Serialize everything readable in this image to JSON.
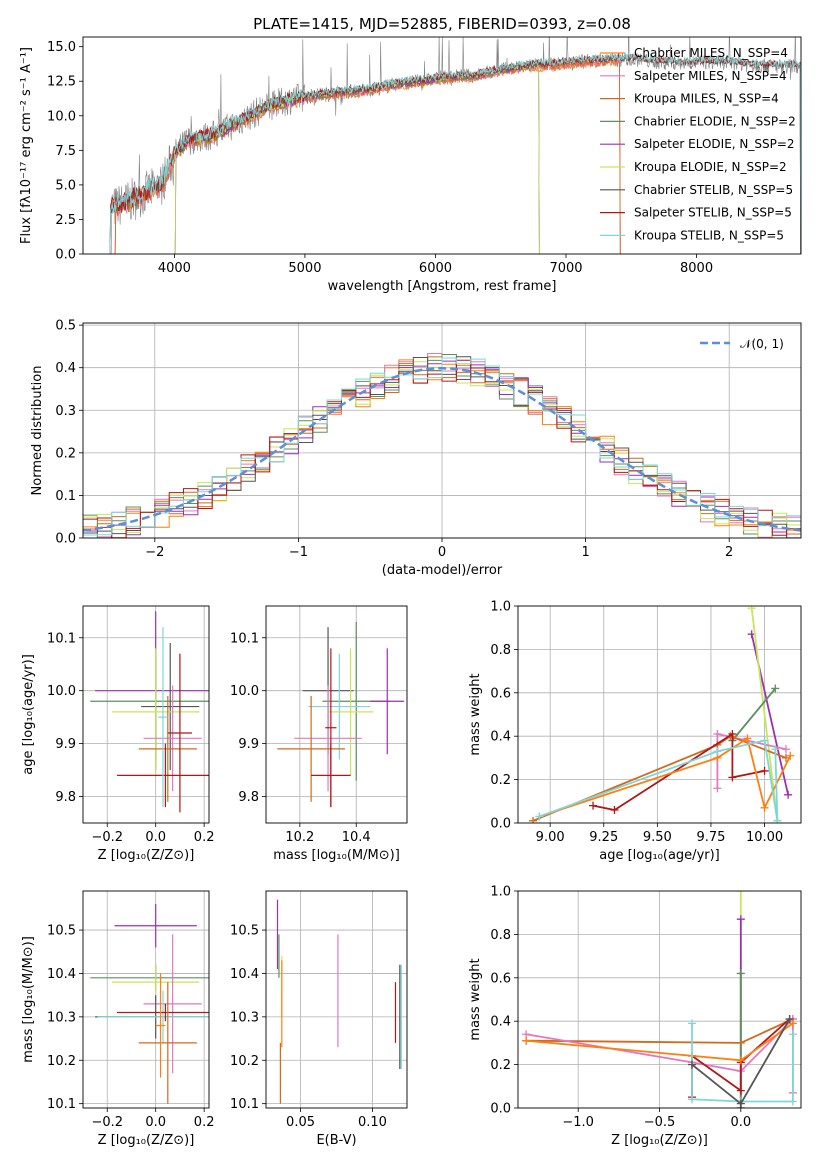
{
  "palette": [
    "#ff7f0e",
    "#e377c2",
    "#d2691e",
    "#5e8f5e",
    "#9b30b5",
    "#c8e65a",
    "#555555",
    "#b01818",
    "#7fd6d6"
  ],
  "chart_data": [
    {
      "id": "spectrum",
      "type": "line",
      "title": "PLATE=1415, MJD=52885, FIBERID=0393, z=0.08",
      "xlabel": "wavelength [Angstrom, rest frame]",
      "ylabel": "Flux [fλ10⁻¹⁷ erg cm⁻² s⁻¹ A⁻¹]",
      "xlim": [
        3300,
        8800
      ],
      "ylim": [
        0,
        15.7
      ],
      "xticks": [
        "4000",
        "5000",
        "6000",
        "7000",
        "8000"
      ],
      "yticks": [
        "0.0",
        "2.5",
        "5.0",
        "7.5",
        "10.0",
        "12.5",
        "15.0"
      ],
      "grid": false,
      "legend_position": "top-right",
      "continuum_anchor_x": [
        3500,
        3700,
        3900,
        4000,
        4100,
        4300,
        4500,
        4700,
        4900,
        5100,
        5300,
        5500,
        5700,
        5900,
        6100,
        6300,
        6500,
        6700,
        6900,
        7100,
        7300,
        7500,
        7700,
        7900,
        8100,
        8300,
        8500,
        8700
      ],
      "continuum_anchor_y": [
        3.2,
        4.0,
        5.0,
        7.2,
        8.2,
        8.6,
        9.6,
        10.6,
        11.2,
        11.5,
        11.7,
        11.9,
        12.3,
        12.5,
        12.8,
        12.9,
        13.3,
        13.6,
        13.7,
        13.9,
        14.0,
        14.1,
        13.9,
        13.8,
        13.9,
        13.8,
        13.6,
        13.6
      ],
      "series": [
        {
          "name": "Chabrier MILES, N_SSP=4",
          "color": "#ff7f0e",
          "x_range": [
            3540,
            7420
          ]
        },
        {
          "name": "Salpeter MILES, N_SSP=4",
          "color": "#e377c2",
          "x_range": [
            3540,
            7420
          ]
        },
        {
          "name": "Kroupa MILES, N_SSP=4",
          "color": "#d2691e",
          "x_range": [
            3540,
            7420
          ]
        },
        {
          "name": "Chabrier ELODIE, N_SSP=2",
          "color": "#5e8f5e",
          "x_range": [
            4000,
            6800
          ]
        },
        {
          "name": "Salpeter ELODIE, N_SSP=2",
          "color": "#9b30b5",
          "x_range": [
            4000,
            6800
          ]
        },
        {
          "name": "Kroupa ELODIE, N_SSP=2",
          "color": "#c8e65a",
          "x_range": [
            4000,
            6800
          ]
        },
        {
          "name": "Chabrier STELIB, N_SSP=5",
          "color": "#555555",
          "x_range": [
            3500,
            8800
          ]
        },
        {
          "name": "Salpeter STELIB, N_SSP=5",
          "color": "#b01818",
          "x_range": [
            3500,
            8800
          ]
        },
        {
          "name": "Kroupa STELIB, N_SSP=5",
          "color": "#7fd6d6",
          "x_range": [
            3500,
            8800
          ]
        }
      ]
    },
    {
      "id": "residuals",
      "type": "histogram",
      "xlabel": "(data-model)/error",
      "ylabel": "Normed distribution",
      "xlim": [
        -2.5,
        2.5
      ],
      "ylim": [
        0,
        0.505
      ],
      "xticks": [
        "−2",
        "−1",
        "0",
        "1",
        "2"
      ],
      "yticks": [
        "0.0",
        "0.1",
        "0.2",
        "0.3",
        "0.4",
        "0.5"
      ],
      "grid": true,
      "legend": "𝒩(0, 1)",
      "legend_position": "top-right",
      "bin_width": 0.1
    },
    {
      "id": "age-vs-Z",
      "type": "errorbar",
      "xlabel": "Z [log₁₀(Z/Z⊙)]",
      "ylabel": "age  [log₁₀(age/yr)]",
      "xlim": [
        -0.3,
        0.22
      ],
      "ylim": [
        9.75,
        10.16
      ],
      "xticks": [
        "−0.2",
        "0.0",
        "0.2"
      ],
      "yticks": [
        "9.8",
        "9.9",
        "10.0",
        "10.1"
      ],
      "grid": true,
      "points": [
        {
          "x": 0.0,
          "y": 10.0,
          "xerr": 0.25,
          "yerr": 0.15,
          "c": 4
        },
        {
          "x": 0.0,
          "y": 9.98,
          "xerr": 0.27,
          "yerr": 0.1,
          "c": 3
        },
        {
          "x": 0.06,
          "y": 9.97,
          "xerr": 0.12,
          "yerr": 0.12,
          "c": 6
        },
        {
          "x": 0.0,
          "y": 9.96,
          "xerr": 0.18,
          "yerr": 0.12,
          "c": 5
        },
        {
          "x": 0.07,
          "y": 9.91,
          "xerr": 0.12,
          "yerr": 0.1,
          "c": 1
        },
        {
          "x": 0.05,
          "y": 9.89,
          "xerr": 0.12,
          "yerr": 0.1,
          "c": 2
        },
        {
          "x": 0.04,
          "y": 9.84,
          "xerr": 0.2,
          "yerr": 0.06,
          "c": 7
        },
        {
          "x": 0.1,
          "y": 9.92,
          "xerr": 0.05,
          "yerr": 0.15,
          "c": 7
        },
        {
          "x": 0.03,
          "y": 9.95,
          "xerr": 0.02,
          "yerr": 0.17,
          "c": 8
        }
      ]
    },
    {
      "id": "age-vs-mass",
      "type": "errorbar",
      "xlabel": "mass [log₁₀(M/M⊙)]",
      "ylabel": "",
      "xlim": [
        10.08,
        10.58
      ],
      "ylim": [
        9.75,
        10.16
      ],
      "xticks": [
        "10.2",
        "10.4"
      ],
      "yticks": [
        "9.8",
        "9.9",
        "10.0",
        "10.1"
      ],
      "grid": true,
      "points": [
        {
          "x": 10.3,
          "y": 10.0,
          "xerr": 0.09,
          "yerr": 0.12,
          "c": 6
        },
        {
          "x": 10.4,
          "y": 9.98,
          "xerr": 0.12,
          "yerr": 0.15,
          "c": 3
        },
        {
          "x": 10.51,
          "y": 9.98,
          "xerr": 0.06,
          "yerr": 0.1,
          "c": 4
        },
        {
          "x": 10.34,
          "y": 9.97,
          "xerr": 0.11,
          "yerr": 0.1,
          "c": 8
        },
        {
          "x": 10.38,
          "y": 9.96,
          "xerr": 0.08,
          "yerr": 0.12,
          "c": 5
        },
        {
          "x": 10.3,
          "y": 9.91,
          "xerr": 0.12,
          "yerr": 0.1,
          "c": 1
        },
        {
          "x": 10.24,
          "y": 9.89,
          "xerr": 0.12,
          "yerr": 0.1,
          "c": 2
        },
        {
          "x": 10.31,
          "y": 9.84,
          "xerr": 0.07,
          "yerr": 0.06,
          "c": 7
        },
        {
          "x": 10.31,
          "y": 9.93,
          "xerr": 0.02,
          "yerr": 0.15,
          "c": 7
        }
      ]
    },
    {
      "id": "weight-vs-age",
      "type": "line",
      "xlabel": "age  [log₁₀(age/yr)]",
      "ylabel": "mass weight",
      "xlim": [
        8.85,
        10.17
      ],
      "ylim": [
        0,
        1.0
      ],
      "xticks": [
        "9.00",
        "9.25",
        "9.50",
        "9.75",
        "10.00"
      ],
      "yticks": [
        "0.0",
        "0.2",
        "0.4",
        "0.6",
        "0.8",
        "1.0"
      ],
      "grid": true,
      "series": [
        {
          "c": 4,
          "x": [
            9.94,
            10.11
          ],
          "y": [
            0.87,
            0.13
          ]
        },
        {
          "c": 5,
          "x": [
            9.94,
            10.06
          ],
          "y": [
            0.99,
            0.01
          ]
        },
        {
          "c": 3,
          "x": [
            9.85,
            10.05
          ],
          "y": [
            0.38,
            0.62
          ]
        },
        {
          "c": 1,
          "x": [
            9.78,
            9.78,
            10.1
          ],
          "y": [
            0.16,
            0.41,
            0.34
          ]
        },
        {
          "c": 2,
          "x": [
            8.92,
            9.78,
            9.84,
            10.1
          ],
          "y": [
            0.01,
            0.36,
            0.4,
            0.3
          ]
        },
        {
          "c": 7,
          "x": [
            9.2,
            9.3,
            9.85,
            9.85,
            10.0
          ],
          "y": [
            0.08,
            0.06,
            0.41,
            0.21,
            0.24
          ]
        },
        {
          "c": 0,
          "x": [
            8.95,
            9.78,
            9.92,
            10.0,
            10.12
          ],
          "y": [
            0.03,
            0.3,
            0.39,
            0.07,
            0.31
          ]
        },
        {
          "c": 8,
          "x": [
            8.95,
            9.78,
            10.0,
            10.06,
            10.05
          ],
          "y": [
            0.03,
            0.33,
            0.38,
            0.01,
            0.34
          ]
        }
      ]
    },
    {
      "id": "mass-vs-Z",
      "type": "errorbar",
      "xlabel": "Z [log₁₀(Z/Z⊙)]",
      "ylabel": "mass [log₁₀(M/M⊙)]",
      "xlim": [
        -0.3,
        0.22
      ],
      "ylim": [
        10.09,
        10.59
      ],
      "xticks": [
        "−0.2",
        "0.0",
        "0.2"
      ],
      "yticks": [
        "10.1",
        "10.2",
        "10.3",
        "10.4",
        "10.5"
      ],
      "grid": true,
      "points": [
        {
          "x": 0.0,
          "y": 10.51,
          "xerr": 0.17,
          "yerr": 0.05,
          "c": 4
        },
        {
          "x": 0.0,
          "y": 10.39,
          "xerr": 0.27,
          "yerr": 0.03,
          "c": 3
        },
        {
          "x": 0.0,
          "y": 10.38,
          "xerr": 0.18,
          "yerr": 0.04,
          "c": 5
        },
        {
          "x": 0.07,
          "y": 10.33,
          "xerr": 0.12,
          "yerr": 0.16,
          "c": 1
        },
        {
          "x": 0.0,
          "y": 10.3,
          "xerr": 0.25,
          "yerr": 0.05,
          "c": 6
        },
        {
          "x": 0.03,
          "y": 10.3,
          "xerr": 0.27,
          "yerr": 0.06,
          "c": 8
        },
        {
          "x": 0.04,
          "y": 10.31,
          "xerr": 0.2,
          "yerr": 0.02,
          "c": 7
        },
        {
          "x": 0.05,
          "y": 10.24,
          "xerr": 0.12,
          "yerr": 0.14,
          "c": 2
        },
        {
          "x": 0.02,
          "y": 10.28,
          "xerr": 0.02,
          "yerr": 0.12,
          "c": 0
        }
      ]
    },
    {
      "id": "mass-vs-EBV",
      "type": "errorbar",
      "xlabel": "E(B-V)",
      "ylabel": "",
      "xlim": [
        0.026,
        0.124
      ],
      "ylim": [
        10.09,
        10.59
      ],
      "xticks": [
        "0.05",
        "0.10"
      ],
      "yticks": [
        "10.1",
        "10.2",
        "10.3",
        "10.4",
        "10.5"
      ],
      "grid": true,
      "points": [
        {
          "x": 0.034,
          "y": 10.49,
          "xerr": 0,
          "yerr": 0.08,
          "c": 4
        },
        {
          "x": 0.035,
          "y": 10.44,
          "xerr": 0,
          "yerr": 0.05,
          "c": 3
        },
        {
          "x": 0.037,
          "y": 10.37,
          "xerr": 0,
          "yerr": 0.07,
          "c": 5
        },
        {
          "x": 0.036,
          "y": 10.17,
          "xerr": 0,
          "yerr": 0.07,
          "c": 2
        },
        {
          "x": 0.037,
          "y": 10.33,
          "xerr": 0,
          "yerr": 0.1,
          "c": 0
        },
        {
          "x": 0.076,
          "y": 10.36,
          "xerr": 0,
          "yerr": 0.13,
          "c": 1
        },
        {
          "x": 0.116,
          "y": 10.31,
          "xerr": 0,
          "yerr": 0.07,
          "c": 7
        },
        {
          "x": 0.119,
          "y": 10.3,
          "xerr": 0,
          "yerr": 0.12,
          "c": 6
        },
        {
          "x": 0.12,
          "y": 10.3,
          "xerr": 0,
          "yerr": 0.12,
          "c": 8
        }
      ]
    },
    {
      "id": "weight-vs-Z",
      "type": "line",
      "xlabel": "Z [log₁₀(Z/Z⊙)]",
      "ylabel": "mass weight",
      "xlim": [
        -1.37,
        0.37
      ],
      "ylim": [
        0,
        1.0
      ],
      "xticks": [
        "−1.0",
        "−0.5",
        "0.0"
      ],
      "yticks": [
        "0.0",
        "0.2",
        "0.4",
        "0.6",
        "0.8",
        "1.0"
      ],
      "grid": true,
      "series": [
        {
          "c": 5,
          "x": [
            0.0,
            0.0
          ],
          "y": [
            0.0,
            1.0
          ]
        },
        {
          "c": 4,
          "x": [
            0.0,
            0.0
          ],
          "y": [
            0.0,
            0.87
          ]
        },
        {
          "c": 3,
          "x": [
            0.0,
            0.0
          ],
          "y": [
            0.0,
            0.62
          ]
        },
        {
          "c": 2,
          "x": [
            -1.32,
            0.0,
            0.32
          ],
          "y": [
            0.31,
            0.3,
            0.41
          ]
        },
        {
          "c": 1,
          "x": [
            -1.32,
            -0.3,
            0.0,
            0.32,
            0.32
          ],
          "y": [
            0.34,
            0.21,
            0.17,
            0.41,
            0.07
          ]
        },
        {
          "c": 7,
          "x": [
            -0.3,
            -0.3,
            0.0,
            0.0,
            0.3
          ],
          "y": [
            0.05,
            0.24,
            0.08,
            0.21,
            0.41
          ]
        },
        {
          "c": 0,
          "x": [
            -1.32,
            0.0,
            0.32
          ],
          "y": [
            0.31,
            0.22,
            0.39
          ]
        },
        {
          "c": 8,
          "x": [
            -0.3,
            -0.3,
            0.0,
            0.32,
            0.32
          ],
          "y": [
            0.39,
            0.04,
            0.03,
            0.03,
            0.34
          ]
        },
        {
          "c": 6,
          "x": [
            -0.3,
            0.0,
            0.3
          ],
          "y": [
            0.2,
            0.02,
            0.41
          ]
        }
      ]
    }
  ]
}
